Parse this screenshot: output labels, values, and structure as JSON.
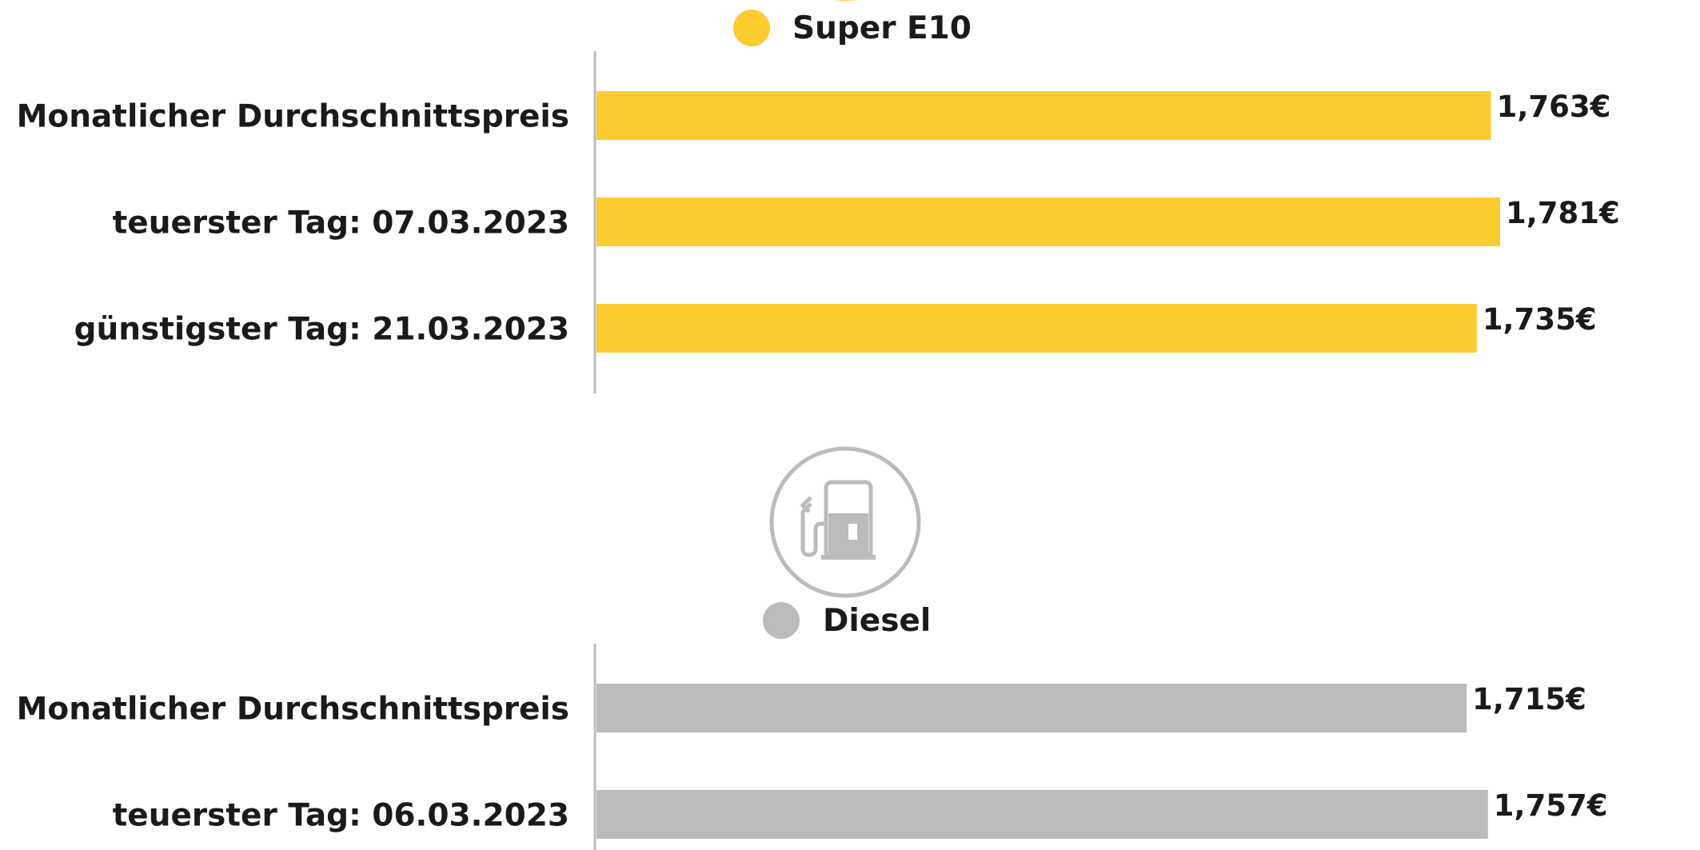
{
  "chart_data": [
    {
      "type": "bar",
      "orientation": "horizontal",
      "series_name": "Super E10",
      "color": "#FCCB30",
      "categories": [
        "Monatlicher Durchschnittspreis",
        "teuerster Tag: 07.03.2023",
        "günstigster Tag: 21.03.2023"
      ],
      "values": [
        1.763,
        1.781,
        1.735
      ],
      "value_labels": [
        "1,763€",
        "1,781€",
        "1,735€"
      ],
      "xlim": [
        0,
        1.781
      ]
    },
    {
      "type": "bar",
      "orientation": "horizontal",
      "series_name": "Diesel",
      "color": "#BBBBBB",
      "icon": "fuel-pump-icon",
      "categories": [
        "Monatlicher Durchschnittspreis",
        "teuerster Tag: 06.03.2023"
      ],
      "values": [
        1.715,
        1.757
      ],
      "value_labels": [
        "1,715€",
        "1,757€"
      ],
      "xlim": [
        0,
        1.781
      ]
    }
  ]
}
